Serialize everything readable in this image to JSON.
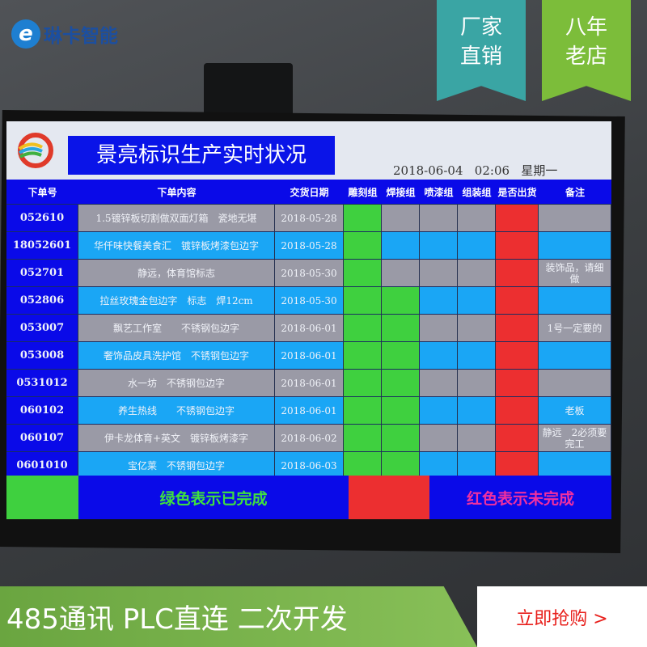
{
  "overlay": {
    "brand": "琳卡智能",
    "flag1": [
      "厂家",
      "直销"
    ],
    "flag2": [
      "八年",
      "老店"
    ],
    "flag1_color": "#3aa5a4",
    "flag2_color": "#7cbd3a",
    "slogan": "485通讯 PLC直连 二次开发",
    "cta": "立即抢购 >"
  },
  "screen": {
    "title": "景亮标识生产实时状况",
    "date": "2018-06-04",
    "time": "02:06",
    "weekday": "星期一",
    "headers": [
      "下单号",
      "下单内容",
      "交货日期",
      "雕刻组",
      "焊接组",
      "喷漆组",
      "组装组",
      "是否出货",
      "备注"
    ],
    "rows": [
      {
        "id": "052610",
        "content": "1.5镀锌板切割做双面灯箱　瓷地无堪",
        "date": "2018-05-28",
        "status": [
          "done",
          "row",
          "row",
          "row",
          "undone"
        ],
        "note": ""
      },
      {
        "id": "18052601",
        "content": "华仟味快餐美食汇　镀锌板烤漆包边字",
        "date": "2018-05-28",
        "status": [
          "done",
          "row",
          "row",
          "row",
          "undone"
        ],
        "note": ""
      },
      {
        "id": "052701",
        "content": "静远，体育馆标志",
        "date": "2018-05-30",
        "status": [
          "done",
          "row",
          "row",
          "row",
          "undone"
        ],
        "note": "装饰品，请细做"
      },
      {
        "id": "052806",
        "content": "拉丝玫瑰金包边字　标志　焊12cm",
        "date": "2018-05-30",
        "status": [
          "done",
          "done",
          "row",
          "row",
          "undone"
        ],
        "note": ""
      },
      {
        "id": "053007",
        "content": "飘艺工作室　　不锈钢包边字",
        "date": "2018-06-01",
        "status": [
          "done",
          "done",
          "row",
          "row",
          "undone"
        ],
        "note": "1号一定要的"
      },
      {
        "id": "053008",
        "content": "奢饰品皮具洗护馆　不锈钢包边字",
        "date": "2018-06-01",
        "status": [
          "done",
          "done",
          "row",
          "row",
          "undone"
        ],
        "note": ""
      },
      {
        "id": "0531012",
        "content": "水一坊　不锈钢包边字",
        "date": "2018-06-01",
        "status": [
          "done",
          "done",
          "row",
          "row",
          "undone"
        ],
        "note": ""
      },
      {
        "id": "060102",
        "content": "养生热线　　不锈钢包边字",
        "date": "2018-06-01",
        "status": [
          "done",
          "done",
          "row",
          "row",
          "undone"
        ],
        "note": "老板"
      },
      {
        "id": "060107",
        "content": "伊卡龙体育+英文　镀锌板烤漆字",
        "date": "2018-06-02",
        "status": [
          "done",
          "done",
          "row",
          "row",
          "undone"
        ],
        "note": "静远　2必须要完工"
      },
      {
        "id": "0601010",
        "content": "宝亿莱　不锈钢包边字",
        "date": "2018-06-03",
        "status": [
          "done",
          "done",
          "row",
          "row",
          "undone"
        ],
        "note": ""
      }
    ],
    "legend_done": "绿色表示已完成",
    "legend_undone": "红色表示未完成",
    "colors": {
      "done": "#3fd03f",
      "undone": "#ec2f30",
      "header": "#0a0ae8",
      "row_gray": "#9a9aa6",
      "row_blue": "#1aa6f5"
    }
  }
}
